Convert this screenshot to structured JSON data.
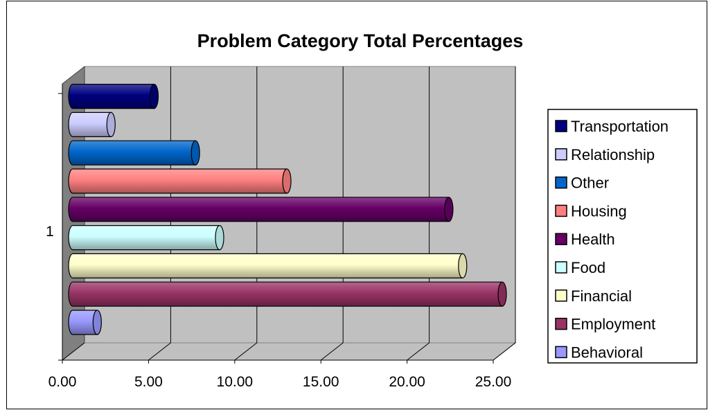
{
  "chart_data": {
    "type": "bar",
    "orientation": "horizontal",
    "title": "Problem Category Total Percentages",
    "categories": [
      "1"
    ],
    "series": [
      {
        "name": "Behavioral",
        "values": [
          1.3
        ],
        "color": "#9999ff"
      },
      {
        "name": "Employment",
        "values": [
          24.8
        ],
        "color": "#993366"
      },
      {
        "name": "Financial",
        "values": [
          22.5
        ],
        "color": "#ffffcc"
      },
      {
        "name": "Food",
        "values": [
          8.4
        ],
        "color": "#ccffff"
      },
      {
        "name": "Health",
        "values": [
          21.7
        ],
        "color": "#660066"
      },
      {
        "name": "Housing",
        "values": [
          12.3
        ],
        "color": "#ff8080"
      },
      {
        "name": "Other",
        "values": [
          7.0
        ],
        "color": "#0066cc"
      },
      {
        "name": "Relationship",
        "values": [
          2.1
        ],
        "color": "#ccccff"
      },
      {
        "name": "Transportation",
        "values": [
          4.6
        ],
        "color": "#000080"
      }
    ],
    "xlim": [
      0,
      25
    ],
    "x_ticks": [
      "0.00",
      "5.00",
      "10.00",
      "15.00",
      "20.00",
      "25.00"
    ],
    "y_tick_labels": [
      "1"
    ],
    "grid": true,
    "legend_position": "right",
    "legend_order": [
      "Transportation",
      "Relationship",
      "Other",
      "Housing",
      "Health",
      "Food",
      "Financial",
      "Employment",
      "Behavioral"
    ]
  }
}
